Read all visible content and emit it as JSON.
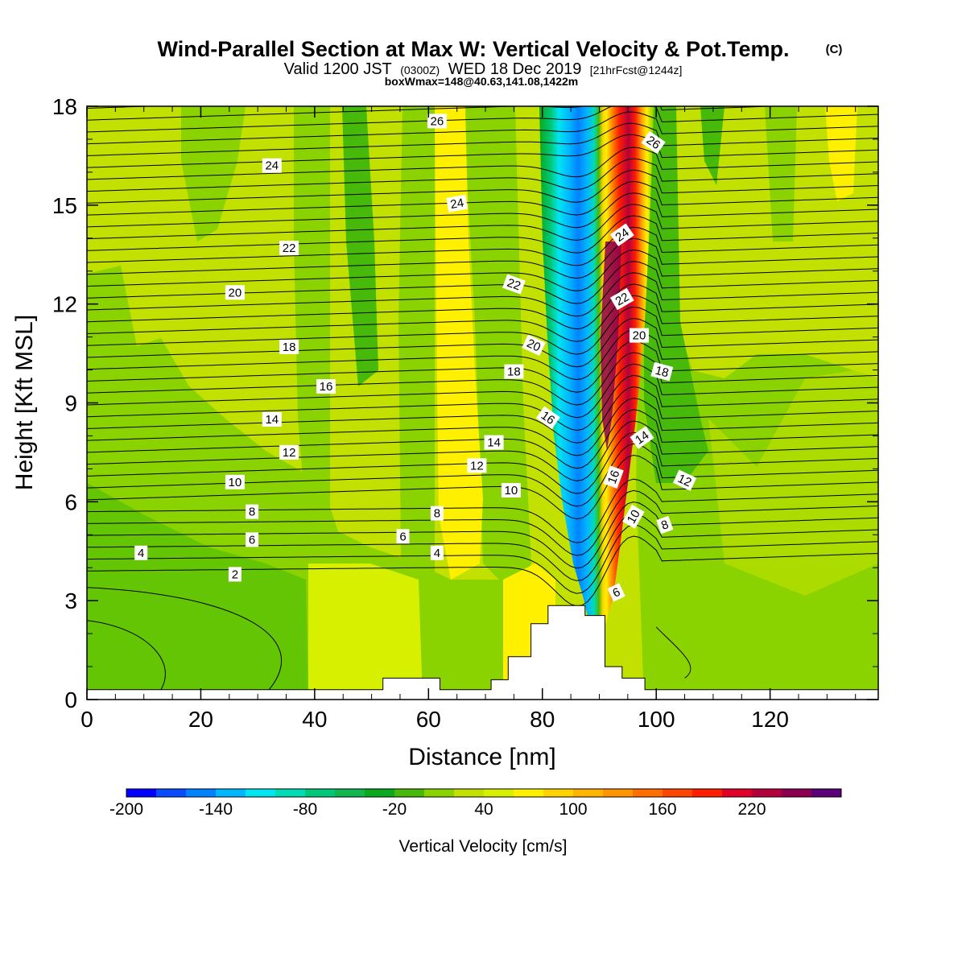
{
  "header": {
    "title_main": "Wind-Parallel Section at Max W: Vertical Velocity & Pot.Temp.",
    "title_mark": "(C)",
    "subtitle_a": "Valid 1200 JST",
    "subtitle_b": "(0300Z)",
    "subtitle_c": "WED 18 Dec 2019",
    "subtitle_d": "[21hrFcst@1244z]",
    "subtitle_line2": "boxWmax=148@40.63,141.08,1422m"
  },
  "chart_data": {
    "type": "heatmap",
    "xlabel": "Distance [nm]",
    "ylabel": "Height [Kft MSL]",
    "xlim": [
      0,
      139
    ],
    "ylim": [
      0,
      18
    ],
    "x_ticks": [
      0,
      20,
      40,
      60,
      80,
      100,
      120
    ],
    "y_ticks": [
      0,
      3,
      6,
      9,
      12,
      15,
      18
    ],
    "colorbar": {
      "label": "Vertical Velocity [cm/s]",
      "min": -200,
      "step": 20,
      "tick_labels": [
        "-200",
        "-140",
        "-80",
        "-20",
        "40",
        "100",
        "160",
        "220"
      ],
      "colors": [
        "#0000ff",
        "#0a4bff",
        "#0082ff",
        "#00b7ff",
        "#00e5f0",
        "#00dcb4",
        "#00c878",
        "#14b450",
        "#0ca91e",
        "#46b90a",
        "#8ad200",
        "#c3e100",
        "#d7f000",
        "#fff000",
        "#ffd200",
        "#ffb400",
        "#ff9600",
        "#ff6e00",
        "#ff4600",
        "#ff1e00",
        "#e10028",
        "#b4003c",
        "#8c0050",
        "#5a0078"
      ]
    },
    "vertical_velocity_features": [
      {
        "name": "downdraft",
        "x_nm": 86,
        "height_kft": [
          3.5,
          18
        ],
        "min_cm_s": -180
      },
      {
        "name": "updraft",
        "x_nm": 94,
        "height_kft": [
          3,
          18
        ],
        "max_cm_s": 200
      },
      {
        "name": "updraft",
        "x_nm": 63,
        "height_kft": [
          1,
          18
        ],
        "max_cm_s": 40
      }
    ],
    "terrain_profile": {
      "x": [
        0,
        52,
        52,
        62,
        62,
        71,
        71,
        74,
        74,
        78,
        78,
        81,
        81,
        87.5,
        87.5,
        91,
        91,
        94,
        94,
        98,
        98,
        139
      ],
      "height_kft": [
        0.3,
        0.3,
        0.65,
        0.65,
        0.3,
        0.3,
        0.6,
        0.6,
        1.3,
        1.3,
        2.3,
        2.3,
        2.85,
        2.85,
        2.55,
        2.55,
        1.0,
        1.0,
        0.65,
        0.65,
        0.3,
        0.3
      ]
    },
    "potential_temperature_labels": [
      {
        "value": 2,
        "x": 26,
        "y": 3.8,
        "rot": 0
      },
      {
        "value": 4,
        "x": 9.5,
        "y": 4.45,
        "rot": 0
      },
      {
        "value": 4,
        "x": 61.5,
        "y": 4.45,
        "rot": 0
      },
      {
        "value": 6,
        "x": 29,
        "y": 4.85,
        "rot": 0
      },
      {
        "value": 6,
        "x": 55.5,
        "y": 4.95,
        "rot": 0
      },
      {
        "value": 6,
        "x": 93,
        "y": 3.25,
        "rot": -25
      },
      {
        "value": 8,
        "x": 29,
        "y": 5.7,
        "rot": 0
      },
      {
        "value": 8,
        "x": 61.5,
        "y": 5.65,
        "rot": 0
      },
      {
        "value": 8,
        "x": 101.5,
        "y": 5.3,
        "rot": -20
      },
      {
        "value": 10,
        "x": 26,
        "y": 6.6,
        "rot": 0
      },
      {
        "value": 10,
        "x": 74.5,
        "y": 6.35,
        "rot": 0
      },
      {
        "value": 10,
        "x": 96,
        "y": 5.55,
        "rot": -60
      },
      {
        "value": 12,
        "x": 35.5,
        "y": 7.5,
        "rot": 0
      },
      {
        "value": 12,
        "x": 68.5,
        "y": 7.1,
        "rot": 0
      },
      {
        "value": 12,
        "x": 105,
        "y": 6.65,
        "rot": 25
      },
      {
        "value": 14,
        "x": 32.5,
        "y": 8.5,
        "rot": 0
      },
      {
        "value": 14,
        "x": 71.5,
        "y": 7.8,
        "rot": 0
      },
      {
        "value": 14,
        "x": 97.5,
        "y": 7.95,
        "rot": -35
      },
      {
        "value": 16,
        "x": 42,
        "y": 9.5,
        "rot": 0
      },
      {
        "value": 16,
        "x": 81,
        "y": 8.55,
        "rot": 35
      },
      {
        "value": 16,
        "x": 92.5,
        "y": 6.75,
        "rot": -70
      },
      {
        "value": 18,
        "x": 35.5,
        "y": 10.7,
        "rot": 0
      },
      {
        "value": 18,
        "x": 75,
        "y": 9.95,
        "rot": 0
      },
      {
        "value": 18,
        "x": 101,
        "y": 9.95,
        "rot": 15
      },
      {
        "value": 20,
        "x": 26,
        "y": 12.35,
        "rot": 0
      },
      {
        "value": 20,
        "x": 78.5,
        "y": 10.75,
        "rot": 25
      },
      {
        "value": 20,
        "x": 97,
        "y": 11.05,
        "rot": 0
      },
      {
        "value": 22,
        "x": 35.5,
        "y": 13.7,
        "rot": 0
      },
      {
        "value": 22,
        "x": 75,
        "y": 12.6,
        "rot": 20
      },
      {
        "value": 22,
        "x": 94,
        "y": 12.15,
        "rot": -30
      },
      {
        "value": 24,
        "x": 32.5,
        "y": 16.2,
        "rot": 0
      },
      {
        "value": 24,
        "x": 65,
        "y": 15.05,
        "rot": -10
      },
      {
        "value": 24,
        "x": 94,
        "y": 14.1,
        "rot": -35
      },
      {
        "value": 26,
        "x": 61.5,
        "y": 17.55,
        "rot": 0
      },
      {
        "value": 26,
        "x": 99.5,
        "y": 16.9,
        "rot": 35
      }
    ]
  }
}
